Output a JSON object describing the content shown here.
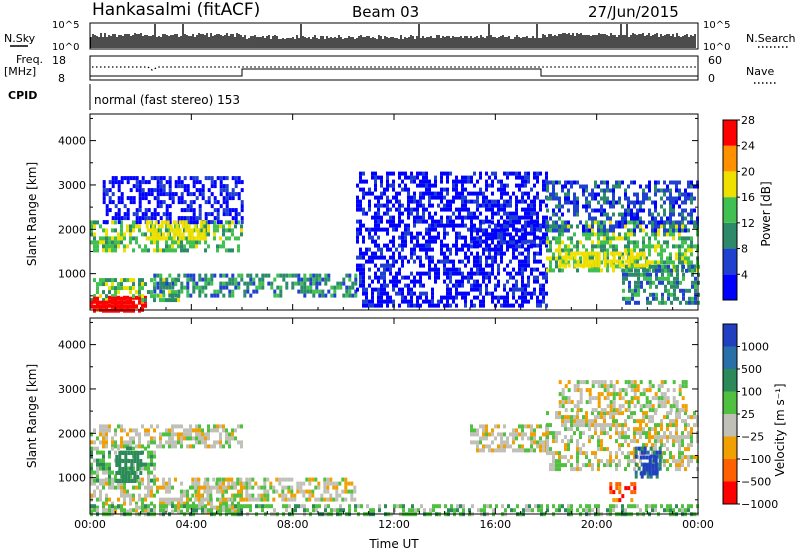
{
  "header": {
    "station": "Hankasalmi (fitACF)",
    "beam": "Beam 03",
    "date": "27/Jun/2015"
  },
  "status_panels": {
    "nsky_label": "N.Sky",
    "nsky_ticks": [
      "10^5",
      "10^0"
    ],
    "nsearch_label": "N.Search",
    "nsearch_ticks": [
      "10^5",
      "10^0"
    ],
    "freq_label": "Freq.",
    "freq_unit": "[MHz]",
    "freq_ticks": [
      "18",
      "8"
    ],
    "nave_label": "Nave",
    "nave_ticks": [
      "60",
      "0"
    ],
    "cpid_label": "CPID",
    "cpid_text": "normal (fast stereo) 153"
  },
  "chart_data": [
    {
      "type": "heatmap",
      "quantity": "power",
      "ylabel": "Slant Range [km]",
      "y_ticks": [
        1000,
        2000,
        3000,
        4000
      ],
      "ylim": [
        180,
        4600
      ],
      "x_ticks": [
        "00:00",
        "04:00",
        "08:00",
        "12:00",
        "16:00",
        "20:00",
        "00:00"
      ],
      "xlim_hours": [
        0,
        24
      ],
      "colorbar": {
        "label": "Power [dB]",
        "ticks": [
          "4",
          "8",
          "12",
          "16",
          "20",
          "24",
          "28"
        ],
        "colors": [
          "#0000ff",
          "#2040d0",
          "#2c8a6a",
          "#3fc050",
          "#f0e000",
          "#ff9000",
          "#ff0000"
        ]
      },
      "regions": [
        {
          "t": [
            0.0,
            2.2
          ],
          "r": [
            200,
            500
          ],
          "level": 6
        },
        {
          "t": [
            0.0,
            3.5
          ],
          "r": [
            400,
            900
          ],
          "level": 3
        },
        {
          "t": [
            0.0,
            6.0
          ],
          "r": [
            1500,
            2200
          ],
          "level": 3
        },
        {
          "t": [
            2.5,
            10.5
          ],
          "r": [
            500,
            1000
          ],
          "level": 2
        },
        {
          "t": [
            0.5,
            6.0
          ],
          "r": [
            2200,
            3200
          ],
          "level": 0
        },
        {
          "t": [
            10.5,
            18.0
          ],
          "r": [
            300,
            3300
          ],
          "level": 0
        },
        {
          "t": [
            15.0,
            18.0
          ],
          "r": [
            1600,
            2200
          ],
          "level": 0
        },
        {
          "t": [
            18.0,
            24.0
          ],
          "r": [
            1100,
            2200
          ],
          "level": 3
        },
        {
          "t": [
            18.0,
            24.0
          ],
          "r": [
            2000,
            3100
          ],
          "level": 1
        },
        {
          "t": [
            21.0,
            24.0
          ],
          "r": [
            300,
            1200
          ],
          "level": 2
        }
      ],
      "highlights": [
        {
          "t": [
            0.0,
            2.0
          ],
          "r": [
            200,
            480
          ],
          "level": 6
        },
        {
          "t": [
            2.2,
            4.5
          ],
          "r": [
            1800,
            2200
          ],
          "level": 4
        },
        {
          "t": [
            18.5,
            22.0
          ],
          "r": [
            1200,
            1500
          ],
          "level": 4
        }
      ]
    },
    {
      "type": "heatmap",
      "quantity": "velocity",
      "ylabel": "Slant Range [km]",
      "y_ticks": [
        1000,
        2000,
        3000,
        4000
      ],
      "ylim": [
        180,
        4600
      ],
      "x_ticks": [
        "00:00",
        "04:00",
        "08:00",
        "12:00",
        "16:00",
        "20:00",
        "00:00"
      ],
      "xlabel": "Time UT",
      "xlim_hours": [
        0,
        24
      ],
      "colorbar": {
        "label": "Velocity [m s⁻¹]",
        "ticks": [
          "1000",
          "500",
          "100",
          "25",
          "−25",
          "−100",
          "−500",
          "−1000"
        ],
        "colors": [
          "#2040c0",
          "#2a70a8",
          "#2c8a5a",
          "#50c040",
          "#c0c0b8",
          "#f0a000",
          "#ff6000",
          "#ff0000"
        ]
      },
      "regions": [
        {
          "t": [
            0.0,
            6.0
          ],
          "r": [
            200,
            1000
          ],
          "level": 4
        },
        {
          "t": [
            0.0,
            6.0
          ],
          "r": [
            1700,
            2200
          ],
          "level": 4
        },
        {
          "t": [
            0.0,
            2.5
          ],
          "r": [
            900,
            1700
          ],
          "level": 3
        },
        {
          "t": [
            4.0,
            10.5
          ],
          "r": [
            500,
            1000
          ],
          "level": 4
        },
        {
          "t": [
            0.0,
            24.0
          ],
          "r": [
            200,
            400
          ],
          "level": 3
        },
        {
          "t": [
            15.0,
            18.0
          ],
          "r": [
            1600,
            2200
          ],
          "level": 4
        },
        {
          "t": [
            18.0,
            24.0
          ],
          "r": [
            1200,
            2500
          ],
          "level": 4
        },
        {
          "t": [
            18.5,
            23.5
          ],
          "r": [
            2500,
            3200
          ],
          "level": 4
        },
        {
          "t": [
            20.5,
            21.5
          ],
          "r": [
            500,
            900
          ],
          "level": 6
        },
        {
          "t": [
            21.5,
            22.5
          ],
          "r": [
            1000,
            1700
          ],
          "level": 1
        }
      ],
      "highlights": [
        {
          "t": [
            1.0,
            2.0
          ],
          "r": [
            900,
            1600
          ],
          "level": 2
        },
        {
          "t": [
            21.7,
            22.4
          ],
          "r": [
            1100,
            1500
          ],
          "level": 0
        }
      ]
    }
  ]
}
